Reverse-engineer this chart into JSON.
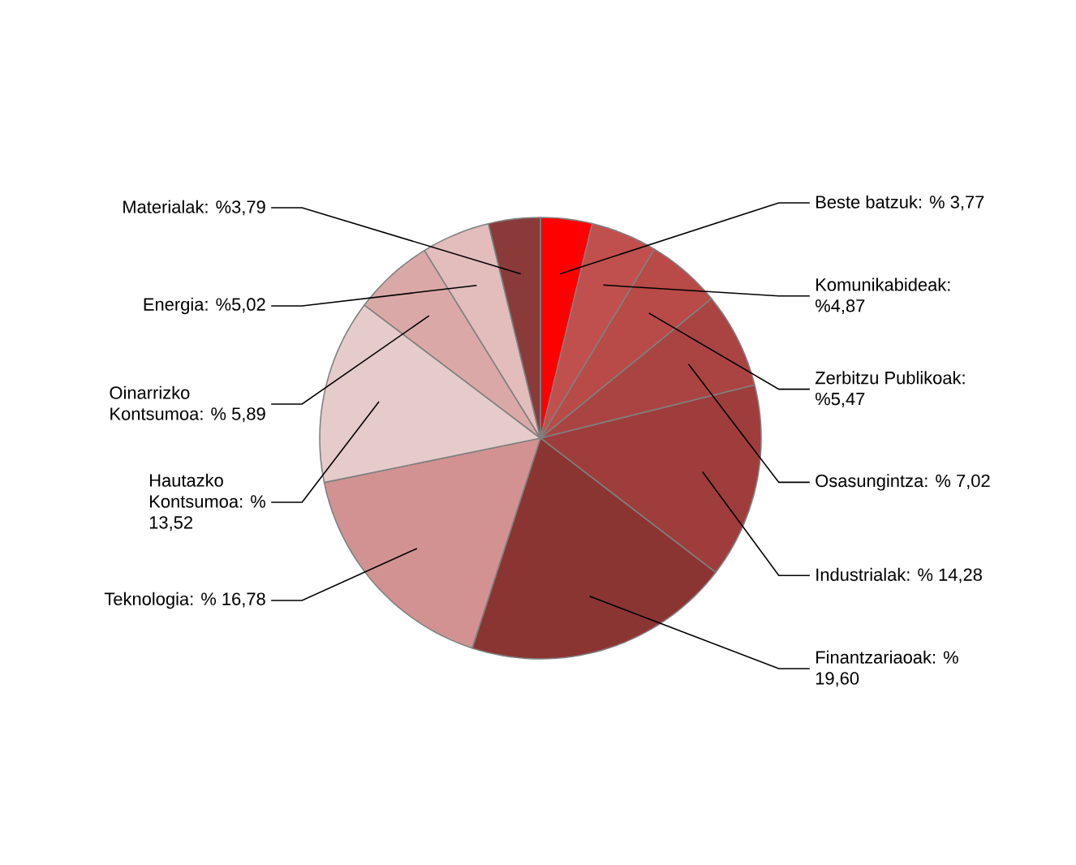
{
  "chart_data": {
    "type": "pie",
    "categories": [
      "Beste batzuk: % 3,77",
      "Komunikabideak: %4,87",
      "Zerbitzu Publikoak: %5,47",
      "Osasungintza: % 7,02",
      "Industrialak: % 14,28",
      "Finantzariaoak: % 19,60",
      "Teknologia: % 16,78",
      "Hautazko Kontsumoa: % 13,52",
      "Oinarrizko Kontsumoa: % 5,89",
      "Energia: %5,02",
      "Materialak: %3,79"
    ],
    "values": [
      3.77,
      4.87,
      5.47,
      7.02,
      14.28,
      19.6,
      16.78,
      13.52,
      5.89,
      5.02,
      3.79
    ],
    "colors": [
      "#ff0000",
      "#c0504d",
      "#b84a47",
      "#a94442",
      "#9e3d3b",
      "#8b3533",
      "#d39292",
      "#e6cbcb",
      "#dba8a8",
      "#e3bcbc",
      "#8b3a3a"
    ]
  }
}
